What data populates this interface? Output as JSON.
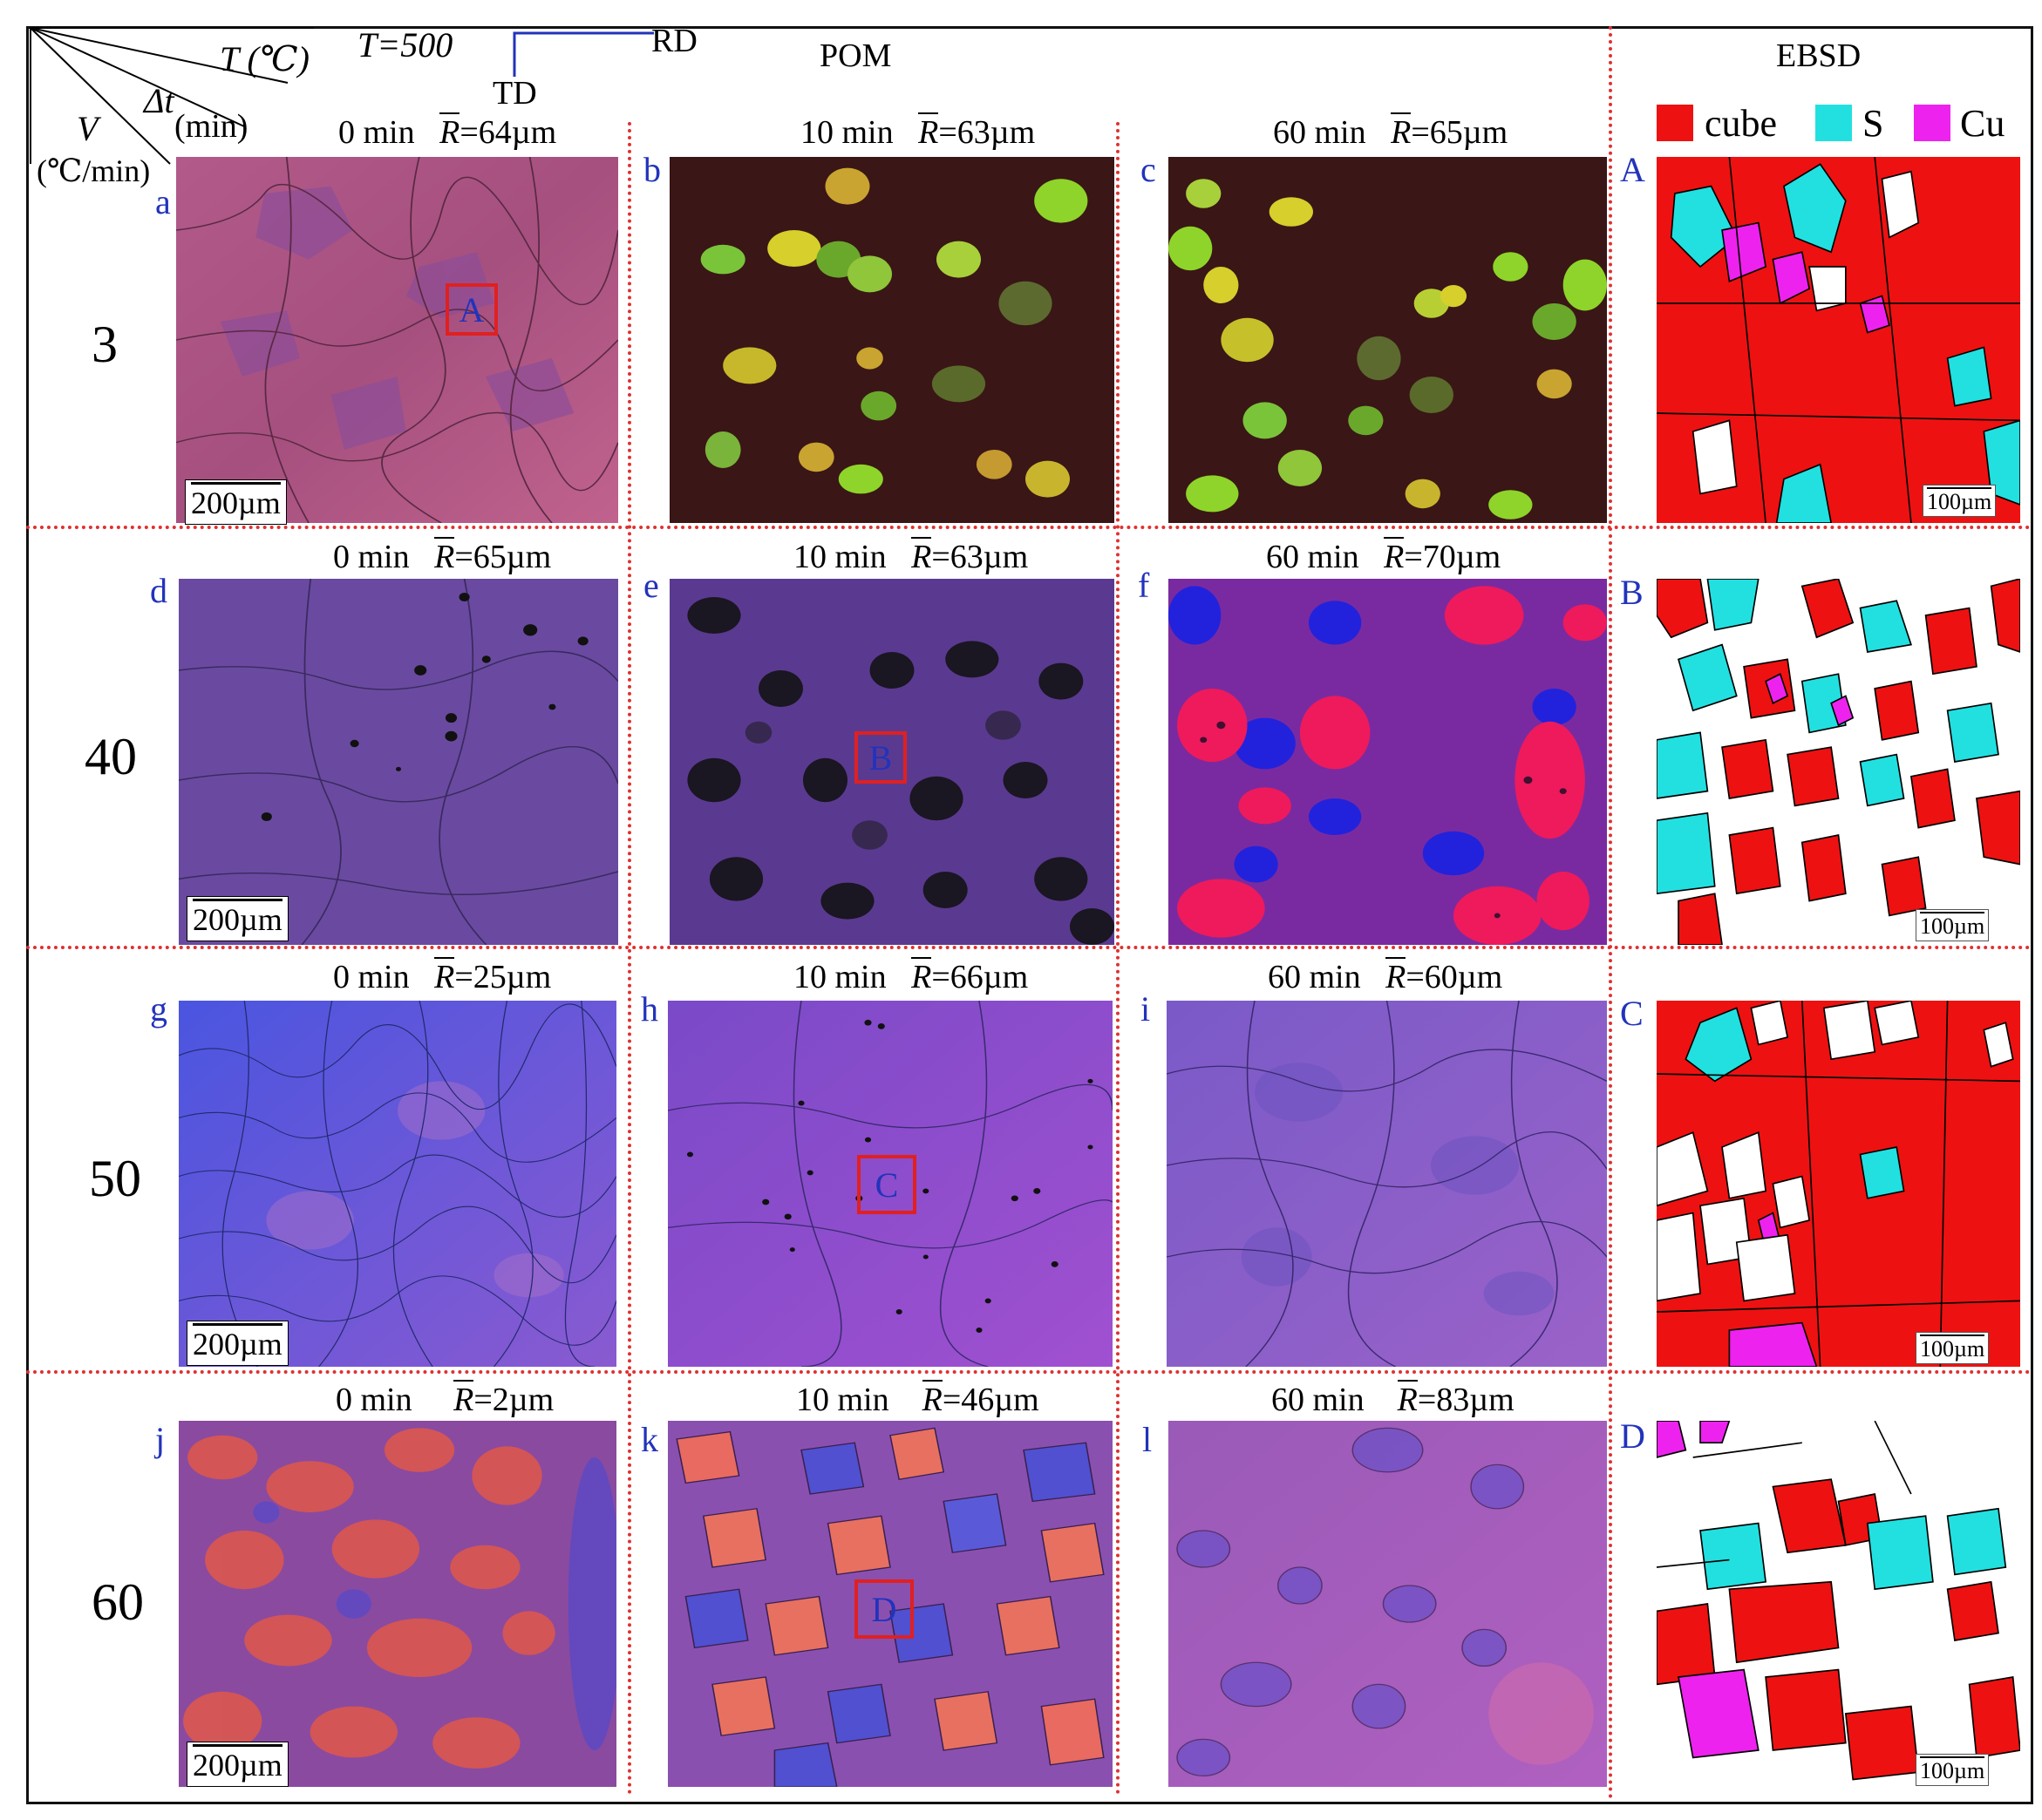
{
  "header": {
    "T_eq": "T=500",
    "T_unit_label": "T (℃)",
    "dt_label": "Δt",
    "dt_unit": "(min)",
    "V_label": "V",
    "V_unit": "(℃/min)",
    "rd": "RD",
    "td": "TD",
    "pom": "POM",
    "ebsd": "EBSD"
  },
  "legend": [
    {
      "label": "cube",
      "color": "#ee1111"
    },
    {
      "label": "S",
      "color": "#22e0e0"
    },
    {
      "label": "Cu",
      "color": "#ee22ee"
    }
  ],
  "rows": [
    {
      "label": "3",
      "panels": [
        {
          "id": "a",
          "time": "0 min",
          "r": "=64µm"
        },
        {
          "id": "b",
          "time": "10 min",
          "r": "=63µm"
        },
        {
          "id": "c",
          "time": "60 min",
          "r": "=65µm"
        }
      ],
      "ebsd_id": "A"
    },
    {
      "label": "40",
      "panels": [
        {
          "id": "d",
          "time": "0 min",
          "r": "=65µm"
        },
        {
          "id": "e",
          "time": "10 min",
          "r": "=63µm"
        },
        {
          "id": "f",
          "time": "60 min",
          "r": "=70µm"
        }
      ],
      "ebsd_id": "B"
    },
    {
      "label": "50",
      "panels": [
        {
          "id": "g",
          "time": "0 min",
          "r": "=25µm"
        },
        {
          "id": "h",
          "time": "10 min",
          "r": "=66µm"
        },
        {
          "id": "i",
          "time": "60 min",
          "r": "=60µm"
        }
      ],
      "ebsd_id": "C"
    },
    {
      "label": "60",
      "panels": [
        {
          "id": "j",
          "time": "0 min",
          "r": "=2µm"
        },
        {
          "id": "k",
          "time": "10 min",
          "r": "=46µm"
        },
        {
          "id": "l",
          "time": "60 min",
          "r": "=83µm"
        }
      ],
      "ebsd_id": "D"
    }
  ],
  "r_symbol": "R",
  "scale_pom": "200µm",
  "scale_ebsd": "100µm",
  "roi_labels": [
    "A",
    "B",
    "C",
    "D"
  ]
}
